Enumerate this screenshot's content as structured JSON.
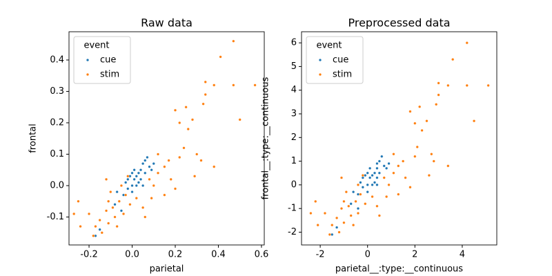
{
  "chart_data": [
    {
      "type": "scatter",
      "title": "Raw data",
      "x_label": "parietal",
      "y_label": "frontal",
      "xlim": [
        -0.293,
        0.613
      ],
      "ylim": [
        -0.189,
        0.49
      ],
      "xticks": [
        -0.2,
        {
          "value": 0,
          "label": "0.0"
        },
        0.2,
        0.4,
        0.6
      ],
      "yticks": [
        -0.1,
        {
          "value": 0,
          "label": "0.0"
        },
        0.1,
        0.2,
        0.3,
        0.4
      ],
      "legend_title": "event",
      "legend": "upper left",
      "series": [
        {
          "name": "cue",
          "color": "#1f77b4",
          "x": [
            0.0,
            0.02,
            -0.02,
            0.04,
            0.01,
            -0.04,
            0.06,
            0.03,
            -0.01,
            0.05,
            0.08,
            -0.06,
            0.0,
            0.02,
            -0.03,
            0.07,
            0.04,
            -0.05,
            0.01,
            0.03,
            -0.08,
            0.06,
            0.09,
            -0.02,
            0.05,
            -0.15,
            -0.17,
            0.1,
            0.0,
            -0.07
          ],
          "values": [
            0.0,
            0.03,
            -0.01,
            0.05,
            0.02,
            -0.03,
            0.04,
            0.01,
            0.03,
            0.07,
            0.06,
            -0.05,
            -0.02,
            0.0,
            0.01,
            0.09,
            0.02,
            -0.08,
            0.05,
            0.04,
            -0.06,
            0.08,
            0.05,
            0.02,
            0.0,
            -0.14,
            -0.16,
            0.07,
            0.04,
            -0.02
          ]
        },
        {
          "name": "stim",
          "color": "#ff7f0e",
          "x": [
            0.57,
            0.47,
            0.41,
            0.5,
            0.34,
            0.38,
            0.47,
            0.34,
            0.33,
            0.28,
            0.25,
            0.22,
            0.2,
            0.26,
            0.3,
            0.24,
            0.22,
            0.15,
            0.12,
            0.18,
            0.2,
            0.38,
            0.29,
            0.32,
            0.15,
            0.09,
            0.05,
            0.12,
            0.08,
            -0.03,
            -0.06,
            -0.09,
            -0.1,
            -0.05,
            -0.08,
            -0.12,
            -0.11,
            -0.15,
            -0.17,
            -0.2,
            -0.25,
            -0.27,
            -0.24,
            -0.18,
            -0.14,
            -0.07,
            -0.04,
            0.02,
            -0.02,
            -0.12,
            -0.11,
            -0.01,
            0.06,
            0.1,
            0.17
          ],
          "values": [
            0.32,
            0.46,
            0.41,
            0.21,
            0.33,
            0.32,
            0.32,
            0.29,
            0.26,
            0.21,
            0.25,
            0.2,
            0.24,
            0.18,
            0.1,
            0.12,
            0.09,
            0.06,
            0.1,
            0.02,
            -0.01,
            0.06,
            0.03,
            0.08,
            -0.03,
            -0.04,
            -0.07,
            0.04,
            0.02,
            -0.03,
            -0.05,
            -0.07,
            -0.02,
            0.0,
            -0.1,
            -0.08,
            -0.12,
            -0.11,
            -0.13,
            -0.09,
            -0.05,
            -0.09,
            -0.13,
            -0.16,
            -0.15,
            -0.13,
            -0.09,
            -0.04,
            0.03,
            0.02,
            -0.05,
            -0.06,
            -0.1,
            0.0,
            0.08
          ]
        }
      ]
    },
    {
      "type": "scatter",
      "title": "Preprocessed data",
      "x_label": "parietal__:type:__continuous",
      "y_label": "frontal__:type:__continuous",
      "xlim": [
        -2.79,
        5.46
      ],
      "ylim": [
        -2.54,
        6.47
      ],
      "xticks": [
        -2,
        0,
        2,
        4
      ],
      "yticks": [
        -2,
        -1,
        0,
        1,
        2,
        3,
        4,
        5,
        6
      ],
      "legend_title": "event",
      "legend": "upper left",
      "series": [
        {
          "name": "cue",
          "color": "#1f77b4",
          "x": [
            0,
            0.2,
            -0.2,
            0.4,
            0.1,
            -0.4,
            0.5,
            0.3,
            -0.1,
            0.4,
            0.7,
            -0.5,
            0,
            0.2,
            -0.3,
            0.6,
            0.4,
            -0.4,
            0.1,
            0.3,
            -0.7,
            0.5,
            0.8,
            -0.2,
            0.4,
            -1.3,
            -1.5,
            0.9,
            0,
            -0.6
          ],
          "values": [
            0,
            0.4,
            -0.1,
            0.7,
            0.3,
            -0.4,
            0.5,
            0.1,
            0.4,
            0.9,
            0.8,
            -0.7,
            -0.3,
            0,
            0.1,
            1.2,
            0.3,
            -1.0,
            0.7,
            0.5,
            -0.8,
            1.0,
            0.7,
            0.3,
            0,
            -1.8,
            -2.1,
            0.9,
            0.5,
            -0.3
          ]
        },
        {
          "name": "stim",
          "color": "#ff7f0e",
          "x": [
            5.1,
            4.2,
            3.6,
            4.5,
            3.0,
            3.4,
            4.2,
            3.0,
            2.9,
            2.5,
            2.2,
            2.0,
            1.8,
            2.3,
            2.7,
            2.1,
            2.0,
            1.3,
            1.1,
            1.6,
            1.8,
            3.4,
            2.6,
            2.8,
            1.3,
            0.8,
            0.4,
            1.1,
            0.7,
            -0.3,
            -0.5,
            -0.8,
            -0.9,
            -0.4,
            -0.7,
            -1.1,
            -1.0,
            -1.3,
            -1.5,
            -1.8,
            -2.2,
            -2.4,
            -2.1,
            -1.6,
            -1.2,
            -0.6,
            -0.4,
            0.2,
            -0.2,
            -1.1,
            -1.0,
            -0.1,
            0.5,
            0.9,
            1.5
          ],
          "values": [
            4.2,
            6.0,
            5.3,
            2.7,
            4.3,
            4.2,
            4.2,
            3.8,
            3.4,
            2.7,
            3.3,
            2.6,
            3.1,
            2.3,
            1.3,
            1.6,
            1.2,
            0.8,
            1.3,
            0.3,
            -0.1,
            0.8,
            0.4,
            1.0,
            -0.4,
            -0.5,
            -0.9,
            0.5,
            0.3,
            -0.4,
            -0.7,
            -0.9,
            -0.3,
            0,
            -1.3,
            -1.0,
            -1.6,
            -1.4,
            -1.7,
            -1.2,
            -0.7,
            -1.2,
            -1.7,
            -2.1,
            -2.0,
            -1.7,
            -1.2,
            -0.5,
            0.4,
            0.3,
            -0.7,
            -0.8,
            -1.3,
            0,
            1.0
          ]
        }
      ]
    }
  ]
}
